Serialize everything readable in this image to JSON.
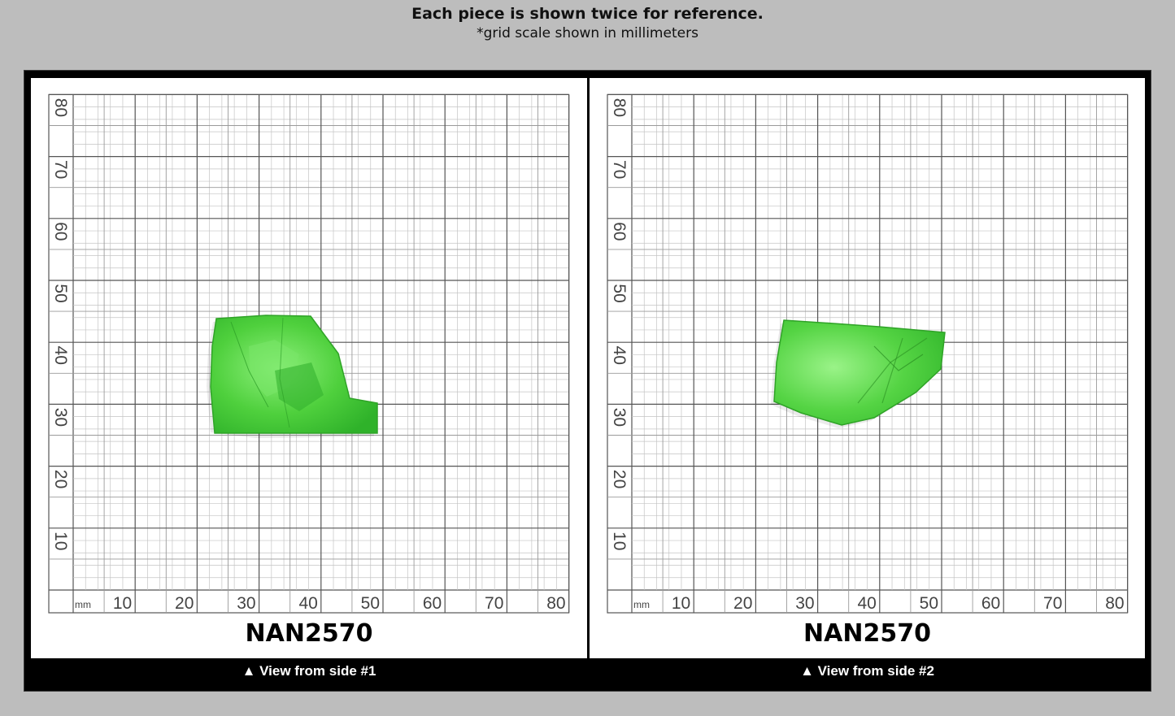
{
  "header": {
    "title": "Each piece is shown twice for reference.",
    "subtitle": "*grid scale shown in millimeters"
  },
  "colors": {
    "background": "#bdbdbd",
    "frame": "#000000",
    "gem": "#4ccf3e",
    "grid_major": "#555555",
    "grid_minor": "#bbbbbb"
  },
  "grid": {
    "unit": "mm",
    "x_ticks": [
      "10",
      "20",
      "30",
      "40",
      "50",
      "60",
      "70",
      "80"
    ],
    "y_ticks": [
      "10",
      "20",
      "30",
      "40",
      "50",
      "60",
      "70",
      "80"
    ]
  },
  "panels": [
    {
      "piece_id": "NAN2570",
      "caption": "▲ View from side #1"
    },
    {
      "piece_id": "NAN2570",
      "caption": "▲ View from side #2"
    }
  ]
}
